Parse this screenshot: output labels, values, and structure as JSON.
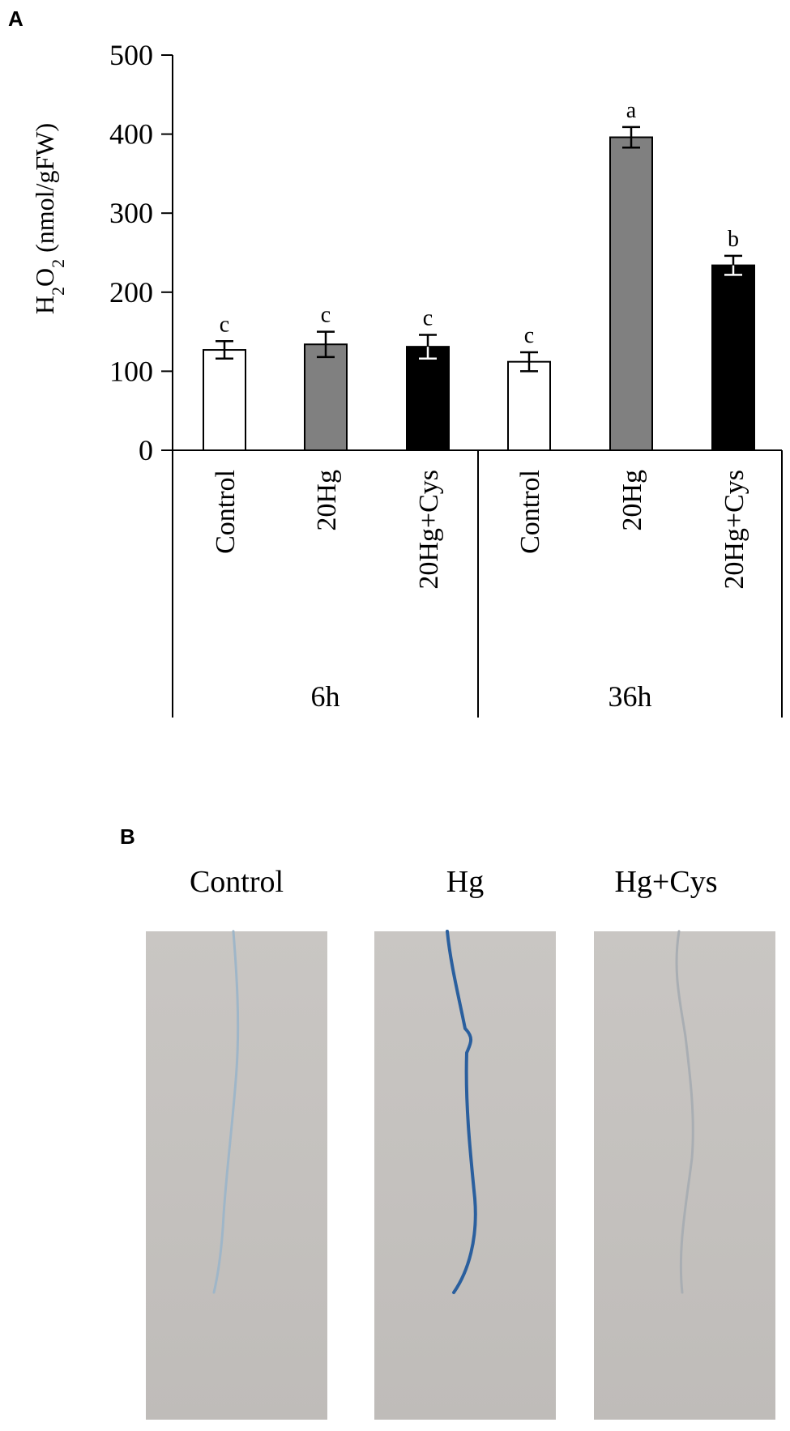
{
  "figure": {
    "panel_a_label": "A",
    "panel_b_label": "B"
  },
  "chart_data": {
    "type": "bar",
    "title": "",
    "ylabel": "H2O2 (nmol/gFW)",
    "ylabel_parts": {
      "base": "H",
      "sub1": "2",
      "mid": "O",
      "sub2": "2",
      "rest": " (nmol/gFW)"
    },
    "xlabel": "",
    "ylim": [
      0,
      500
    ],
    "yticks": [
      0,
      100,
      200,
      300,
      400,
      500
    ],
    "grid": false,
    "groups": [
      "6h",
      "36h"
    ],
    "categories": [
      "Control",
      "20Hg",
      "20Hg+Cys",
      "Control",
      "20Hg",
      "20Hg+Cys"
    ],
    "values": [
      127,
      134,
      131,
      112,
      396,
      234
    ],
    "errors": [
      11,
      16,
      15,
      12,
      13,
      12
    ],
    "significance": [
      "c",
      "c",
      "c",
      "c",
      "a",
      "b"
    ],
    "bar_colors": [
      "#ffffff",
      "#808080",
      "#000000",
      "#ffffff",
      "#808080",
      "#000000"
    ]
  },
  "photos": {
    "titles": [
      "Control",
      "Hg",
      "Hg+Cys"
    ],
    "background_color": "#c4c1be",
    "stain_color": "#2a5f9e"
  }
}
